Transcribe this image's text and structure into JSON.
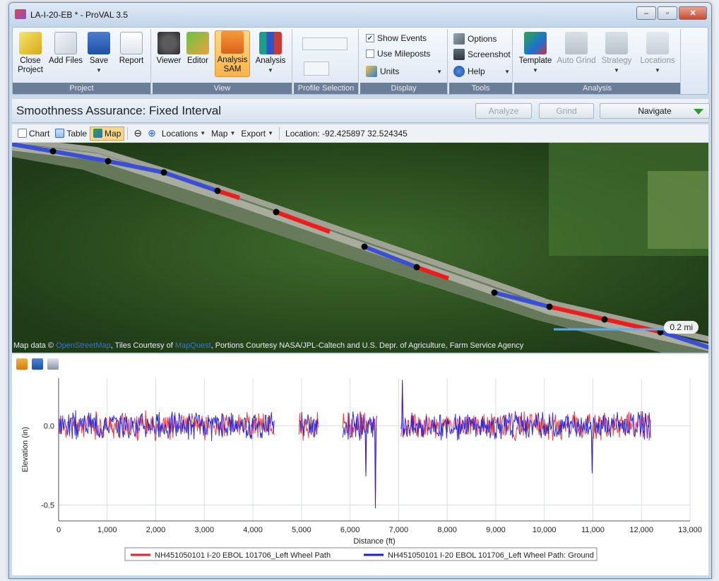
{
  "window": {
    "title": "LA-I-20-EB * - ProVAL 3.5"
  },
  "ribbon": {
    "project": {
      "label": "Project",
      "close": "Close Project",
      "add_files": "Add Files",
      "save": "Save",
      "report": "Report"
    },
    "view": {
      "label": "View",
      "viewer": "Viewer",
      "editor": "Editor",
      "analysis_sam_1": "Analysis",
      "analysis_sam_2": "SAM",
      "analysis": "Analysis"
    },
    "profile_selection": {
      "label": "Profile Selection"
    },
    "display": {
      "label": "Display",
      "show_events": "Show Events",
      "use_mileposts": "Use Mileposts",
      "units": "Units"
    },
    "tools": {
      "label": "Tools",
      "options": "Options",
      "screenshot": "Screenshot",
      "help": "Help"
    },
    "analysis": {
      "label": "Analysis",
      "template": "Template",
      "auto_grind": "Auto Grind",
      "strategy": "Strategy",
      "locations": "Locations"
    }
  },
  "header": {
    "title": "Smoothness Assurance: Fixed Interval",
    "analyze": "Analyze",
    "grind": "Grind",
    "navigate": "Navigate"
  },
  "toolbar": {
    "chart": "Chart",
    "table": "Table",
    "map": "Map",
    "locations": "Locations",
    "map_menu": "Map",
    "export": "Export",
    "location": "Location: -92.425897 32.524345"
  },
  "map": {
    "credit_prefix": "Map data ©",
    "credit_osm": "OpenStreetMap",
    "credit_mid": ", Tiles Courtesy of",
    "credit_mq": "MapQuest",
    "credit_rest": ", Portions Courtesy NASA/JPL-Caltech and U.S. Depr. of Agriculture, Farm Service Agency",
    "scale": "0.2 mi"
  },
  "colors": {
    "left_wheel": "#e0202a",
    "ground": "#1c1cdc",
    "segment_red": "#ee1c1c",
    "segment_blue": "#3a4fd6"
  },
  "chart_data": {
    "type": "line",
    "xlabel": "Distance (ft)",
    "ylabel": "Elevation (in)",
    "xlim": [
      0,
      13000
    ],
    "ylim": [
      -0.6,
      0.3
    ],
    "xticks": [
      "0",
      "1,000",
      "2,000",
      "3,000",
      "4,000",
      "5,000",
      "6,000",
      "7,000",
      "8,000",
      "9,000",
      "10,000",
      "11,000",
      "12,000",
      "13,000"
    ],
    "yticks": [
      "0.0",
      "-0.5"
    ],
    "grid": true,
    "legend_position": "bottom",
    "segments_ft": [
      [
        0,
        4450
      ],
      [
        4950,
        5350
      ],
      [
        5850,
        6550
      ],
      [
        7050,
        12200
      ]
    ],
    "series": [
      {
        "name": "NH451050101 I-20 EBOL 101706_Left Wheel Path",
        "amplitude": 0.07
      },
      {
        "name": "NH451050101 I-20 EBOL 101706_Left Wheel Path: Ground",
        "amplitude": 0.07
      }
    ],
    "spikes": [
      {
        "x": 6520,
        "y": -0.52
      },
      {
        "x": 7080,
        "y": 0.29
      },
      {
        "x": 10980,
        "y": -0.3
      },
      {
        "x": 6320,
        "y": -0.32
      }
    ]
  }
}
